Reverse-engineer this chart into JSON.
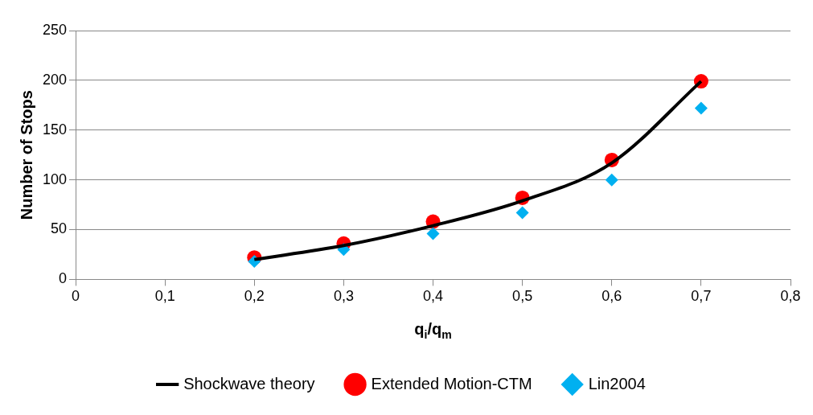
{
  "chart_data": {
    "type": "scatter",
    "xlabel": "q$_{i}$/q$_{m}$",
    "ylabel": "Number of Stops",
    "x": [
      0.2,
      0.3,
      0.4,
      0.5,
      0.6,
      0.7
    ],
    "series": [
      {
        "name": "Shockwave theory",
        "type": "line",
        "color": "#000000",
        "marker": "none",
        "values": [
          20,
          34,
          54,
          79,
          117,
          199
        ]
      },
      {
        "name": "Extended Motion-CTM",
        "color": "#ff0000",
        "marker": "circle",
        "values": [
          22,
          36,
          58,
          82,
          120,
          199
        ]
      },
      {
        "name": "Lin2004",
        "color": "#00b0f0",
        "marker": "diamond",
        "values": [
          18,
          30,
          46,
          67,
          100,
          172
        ]
      }
    ],
    "xlim": [
      0,
      0.8
    ],
    "xticks": [
      0,
      {
        "value": 0.1,
        "label": "0,1"
      },
      {
        "value": 0.2,
        "label": "0,2"
      },
      {
        "value": 0.3,
        "label": "0,3"
      },
      {
        "value": 0.4,
        "label": "0,4"
      },
      {
        "value": 0.5,
        "label": "0,5"
      },
      {
        "value": 0.6,
        "label": "0,6"
      },
      {
        "value": 0.7,
        "label": "0,7"
      },
      {
        "value": 0.8,
        "label": "0,8"
      }
    ],
    "ylim": [
      0,
      250
    ],
    "yticks": [
      0,
      50,
      100,
      150,
      200,
      250
    ],
    "grid": "y",
    "legend": "bottom"
  }
}
